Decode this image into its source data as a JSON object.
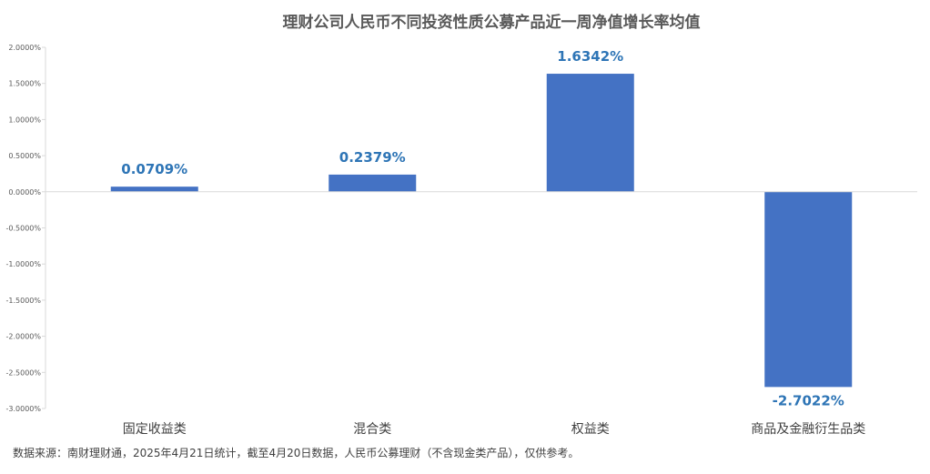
{
  "chart_data": {
    "type": "bar",
    "title": "理财公司人民币不同投资性质公募产品近一周净值增长率均值",
    "categories": [
      "固定收益类",
      "混合类",
      "权益类",
      "商品及金融衍生品类"
    ],
    "values": [
      0.0709,
      0.2379,
      1.6342,
      -2.7022
    ],
    "data_labels": [
      "0.0709%",
      "0.2379%",
      "1.6342%",
      "-2.7022%"
    ],
    "y_ticks": [
      2.0,
      1.5,
      1.0,
      0.5,
      0.0,
      -0.5,
      -1.0,
      -1.5,
      -2.0,
      -2.5,
      -3.0
    ],
    "y_tick_labels": [
      "2.0000%",
      "1.5000%",
      "1.0000%",
      "0.5000%",
      "0.0000%",
      "-0.5000%",
      "-1.0000%",
      "-1.5000%",
      "-2.0000%",
      "-2.5000%",
      "-3.0000%"
    ],
    "ylim": [
      -3.0,
      2.0
    ],
    "xlabel": "",
    "ylabel": "",
    "grid": false,
    "legend": "none",
    "colors": {
      "bar": "#4472c4",
      "label": "#2e75b6",
      "axis": "#d9d9d9"
    }
  },
  "footnote": "数据来源：南财理财通，2025年4月21日统计，截至4月20日数据，人民币公募理财（不含现金类产品），仅供参考。"
}
